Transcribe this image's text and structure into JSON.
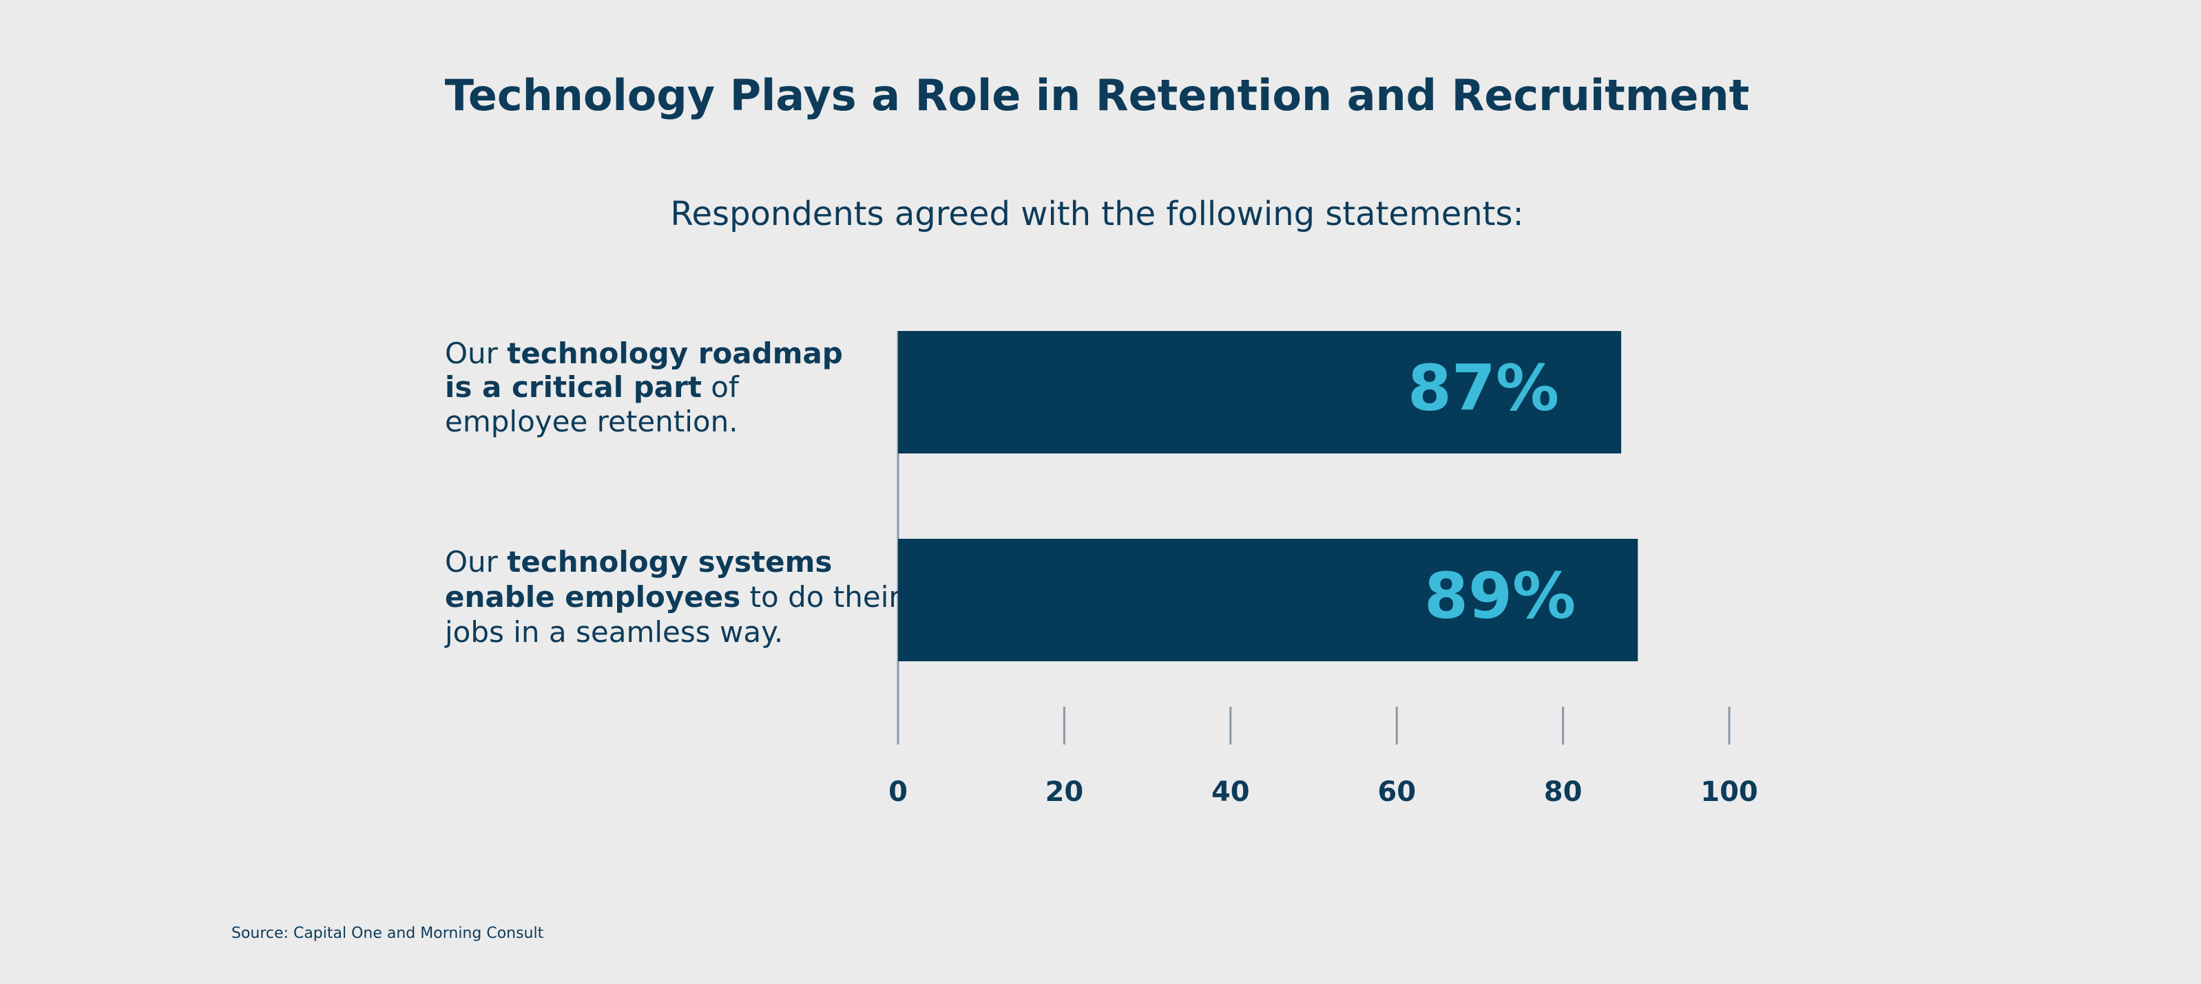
{
  "chart_data": {
    "type": "bar",
    "orientation": "horizontal",
    "title": "Technology Plays a Role in Retention and Recruitment",
    "subtitle": "Respondents agreed with the following statements:",
    "categories": [
      [
        [
          {
            "text": "Our "
          },
          {
            "text": "technology roadmap",
            "bold": true
          }
        ],
        [
          {
            "text": "is a critical part",
            "bold": true
          },
          {
            "text": " of"
          }
        ],
        [
          {
            "text": "employee retention."
          }
        ]
      ],
      [
        [
          {
            "text": "Our "
          },
          {
            "text": "technology systems",
            "bold": true
          }
        ],
        [
          {
            "text": "enable employees",
            "bold": true
          },
          {
            "text": " to do their"
          }
        ],
        [
          {
            "text": "jobs in a seamless way."
          }
        ]
      ]
    ],
    "values": [
      87,
      89
    ],
    "value_labels": [
      "87%",
      "89%"
    ],
    "color": "#053a59",
    "label_color": "#3bbbd9",
    "xlim": [
      0,
      100
    ],
    "xticks": [
      0,
      20,
      40,
      60,
      80,
      100
    ],
    "source": "Source: Capital One and Morning Consult"
  }
}
